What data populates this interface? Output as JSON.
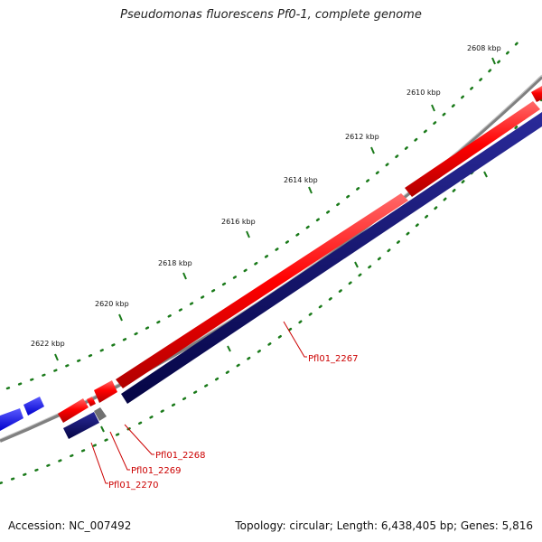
{
  "title": "Pseudomonas fluorescens Pf0-1, complete genome",
  "footer": {
    "accession": "Accession: NC_007492",
    "summary": "Topology: circular; Length: 6,438,405 bp; Genes: 5,816"
  },
  "ruler": {
    "tick_labels": [
      "2608 kbp",
      "2610 kbp",
      "2612 kbp",
      "2614 kbp",
      "2616 kbp",
      "2618 kbp",
      "2620 kbp",
      "2622 kbp"
    ]
  },
  "gene_labels": [
    "Pfl01_2267",
    "Pfl01_2268",
    "Pfl01_2269",
    "Pfl01_2270"
  ],
  "colors": {
    "forward_strand": "#ff0000",
    "reverse_strand": "#0b0b6e",
    "other_forward": "#0000ff",
    "backbone": "#808080",
    "ticks": "#1a7a1a",
    "label_lines": "#cc0000"
  }
}
